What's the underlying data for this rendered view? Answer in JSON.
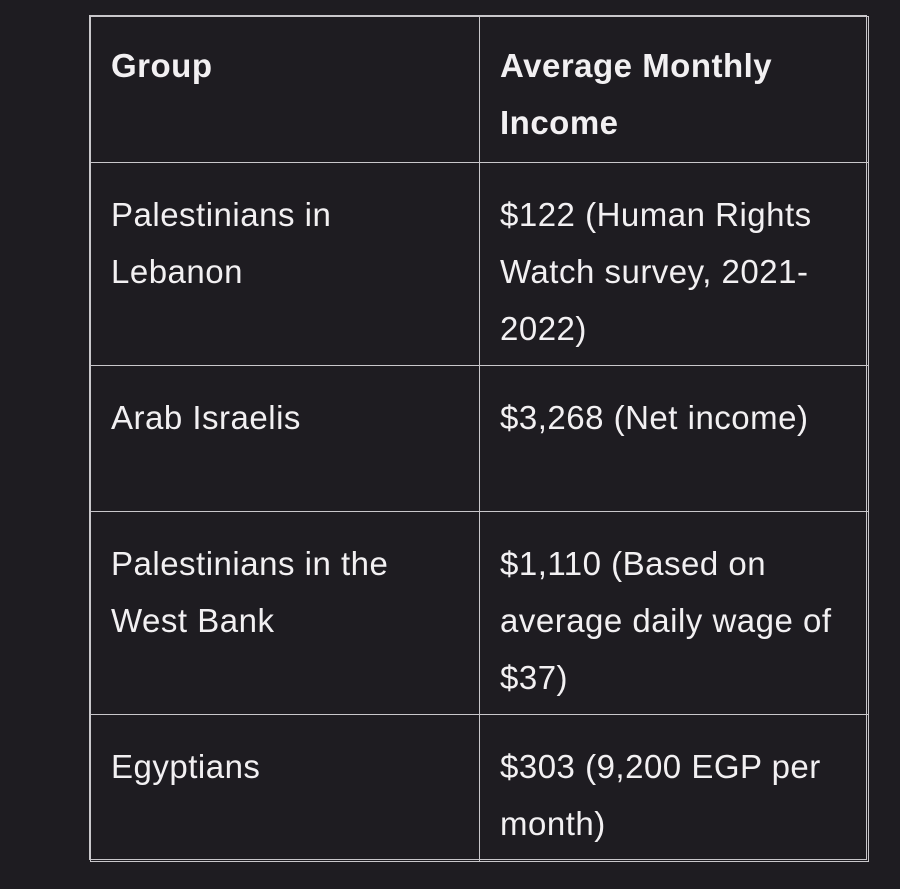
{
  "table": {
    "headers": [
      "Group",
      "Average Monthly Income"
    ],
    "rows": [
      {
        "group": "Palestinians in Lebanon",
        "income": "$122 (Human Rights Watch survey, 2021-2022)"
      },
      {
        "group": "Arab Israelis",
        "income": "$3,268 (Net income)"
      },
      {
        "group": "Palestinians in the West Bank",
        "income": "$1,110 (Based on average daily wage of $37)"
      },
      {
        "group": "Egyptians",
        "income": "$303 (9,200 EGP per month)"
      }
    ]
  },
  "colors": {
    "background": "#1e1c21",
    "border": "#c9c7cb",
    "text": "#f2f0f2"
  }
}
